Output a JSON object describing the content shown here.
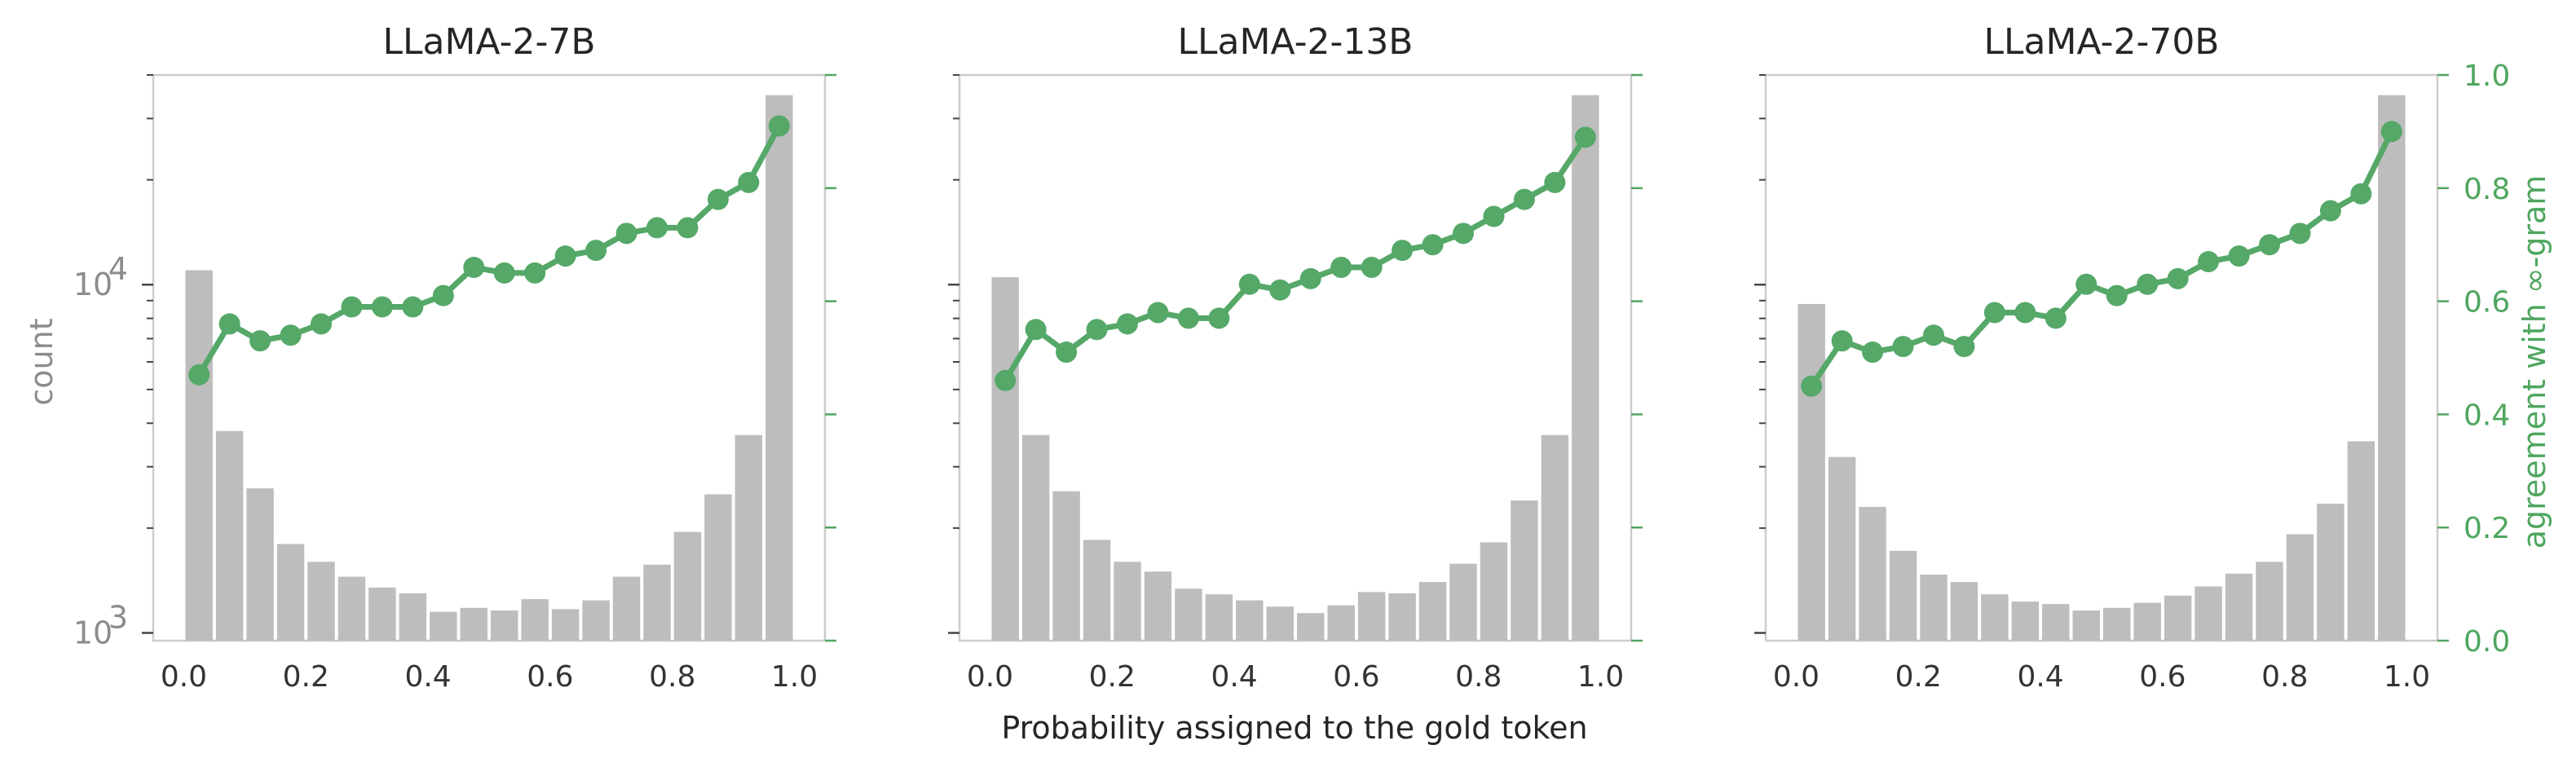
{
  "figure": {
    "xlabel": "Probability assigned to the gold token",
    "left_ylabel": "count",
    "right_ylabel": "agreement with ∞-gram",
    "colors": {
      "bars": "#bdbdbd",
      "line": "#55a868",
      "axis_text": "#8c8c8c",
      "right_axis": "#4fa65f"
    }
  },
  "chart_data": [
    {
      "type": "bar",
      "title": "LLaMA-2-7B",
      "x": [
        0.025,
        0.075,
        0.125,
        0.175,
        0.225,
        0.275,
        0.325,
        0.375,
        0.425,
        0.475,
        0.525,
        0.575,
        0.625,
        0.675,
        0.725,
        0.775,
        0.825,
        0.875,
        0.925,
        0.975
      ],
      "counts": [
        11000,
        3800,
        2600,
        1800,
        1600,
        1450,
        1350,
        1300,
        1150,
        1180,
        1160,
        1250,
        1170,
        1240,
        1450,
        1570,
        1950,
        2500,
        3700,
        35000
      ],
      "agreement": [
        0.47,
        0.56,
        0.53,
        0.54,
        0.56,
        0.59,
        0.59,
        0.59,
        0.61,
        0.66,
        0.65,
        0.65,
        0.68,
        0.69,
        0.72,
        0.73,
        0.73,
        0.78,
        0.81,
        0.91
      ],
      "xlim": [
        -0.05,
        1.05
      ],
      "ylim_count": [
        950,
        40000
      ],
      "yscale_count": "log",
      "ylim_agreement": [
        0,
        1
      ],
      "xticks": [
        "0.0",
        "0.2",
        "0.4",
        "0.6",
        "0.8",
        "1.0"
      ],
      "yticks_count": [
        "10^4",
        "10^3"
      ]
    },
    {
      "type": "bar",
      "title": "LLaMA-2-13B",
      "x": [
        0.025,
        0.075,
        0.125,
        0.175,
        0.225,
        0.275,
        0.325,
        0.375,
        0.425,
        0.475,
        0.525,
        0.575,
        0.625,
        0.675,
        0.725,
        0.775,
        0.825,
        0.875,
        0.925,
        0.975
      ],
      "counts": [
        10500,
        3700,
        2550,
        1850,
        1600,
        1500,
        1340,
        1290,
        1240,
        1190,
        1140,
        1200,
        1310,
        1300,
        1400,
        1580,
        1820,
        2400,
        3700,
        35000
      ],
      "agreement": [
        0.46,
        0.55,
        0.51,
        0.55,
        0.56,
        0.58,
        0.57,
        0.57,
        0.63,
        0.62,
        0.64,
        0.66,
        0.66,
        0.69,
        0.7,
        0.72,
        0.75,
        0.78,
        0.81,
        0.89
      ],
      "xlim": [
        -0.05,
        1.05
      ],
      "ylim_count": [
        950,
        40000
      ],
      "yscale_count": "log",
      "ylim_agreement": [
        0,
        1
      ],
      "xticks": [
        "0.0",
        "0.2",
        "0.4",
        "0.6",
        "0.8",
        "1.0"
      ]
    },
    {
      "type": "bar",
      "title": "LLaMA-2-70B",
      "x": [
        0.025,
        0.075,
        0.125,
        0.175,
        0.225,
        0.275,
        0.325,
        0.375,
        0.425,
        0.475,
        0.525,
        0.575,
        0.625,
        0.675,
        0.725,
        0.775,
        0.825,
        0.875,
        0.925,
        0.975
      ],
      "counts": [
        8800,
        3200,
        2300,
        1720,
        1470,
        1400,
        1290,
        1230,
        1210,
        1160,
        1180,
        1220,
        1280,
        1360,
        1480,
        1600,
        1920,
        2350,
        3550,
        35000
      ],
      "agreement": [
        0.45,
        0.53,
        0.51,
        0.52,
        0.54,
        0.52,
        0.58,
        0.58,
        0.57,
        0.63,
        0.61,
        0.63,
        0.64,
        0.67,
        0.68,
        0.7,
        0.72,
        0.76,
        0.79,
        0.9
      ],
      "xlim": [
        -0.05,
        1.05
      ],
      "ylim_count": [
        950,
        40000
      ],
      "yscale_count": "log",
      "ylim_agreement": [
        0,
        1
      ],
      "xticks": [
        "0.0",
        "0.2",
        "0.4",
        "0.6",
        "0.8",
        "1.0"
      ],
      "yticks_agreement": [
        "0.0",
        "0.2",
        "0.4",
        "0.6",
        "0.8",
        "1.0"
      ]
    }
  ]
}
